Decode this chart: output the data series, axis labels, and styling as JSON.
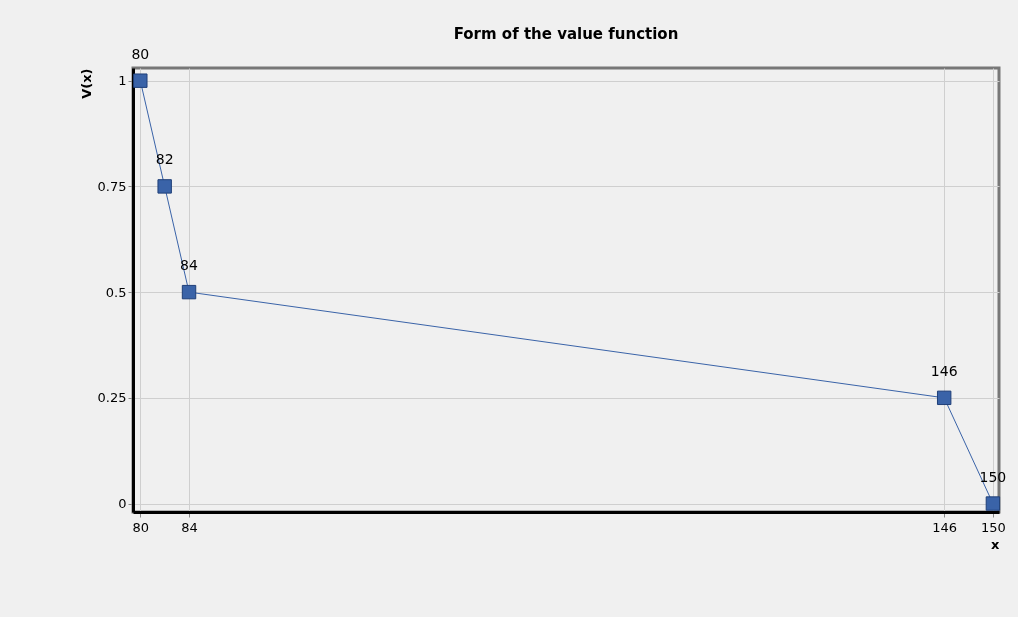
{
  "chart_data": {
    "type": "line",
    "title": "Form of the value function",
    "xlabel": "x",
    "ylabel": "V(x)",
    "x": [
      80,
      82,
      84,
      146,
      150
    ],
    "series": [
      {
        "color": "#3a63a8",
        "values": [
          1,
          0.75,
          0.5,
          0.25,
          0
        ]
      }
    ],
    "annotations": [
      {
        "text": "80",
        "x": 80,
        "y": 1
      },
      {
        "text": "82",
        "x": 82,
        "y": 0.75
      },
      {
        "text": "84",
        "x": 84,
        "y": 0.5
      },
      {
        "text": "146",
        "x": 146,
        "y": 0.25
      },
      {
        "text": "150",
        "x": 150,
        "y": 0
      }
    ],
    "xlim": [
      79.4,
      150.5
    ],
    "xticks": [
      80,
      84,
      146,
      150
    ],
    "ylim": [
      -0.02,
      1.03
    ],
    "yticks": [
      0,
      0.25,
      0.5,
      0.75,
      1
    ],
    "grid": true,
    "marker": "square",
    "line_style": "solid"
  }
}
